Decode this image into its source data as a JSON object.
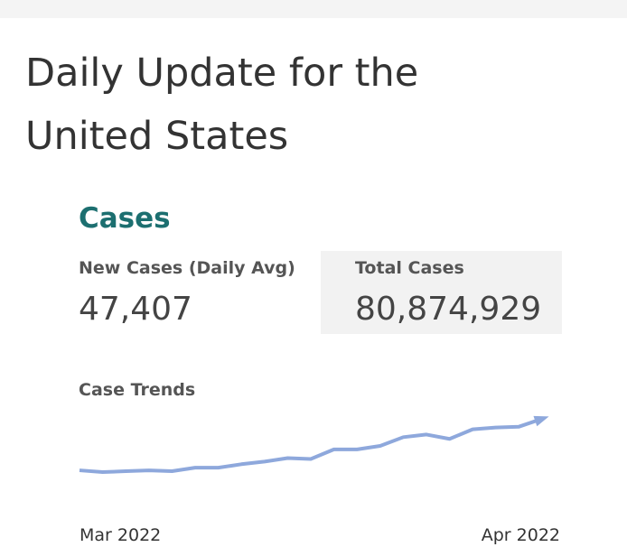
{
  "header": {
    "title_lines": [
      "Daily Update for the",
      "United States"
    ]
  },
  "section": {
    "title": "Cases",
    "stats": [
      {
        "label": "New Cases (Daily Avg)",
        "value": "47,407"
      },
      {
        "label": "Total Cases",
        "value": "80,874,929"
      }
    ],
    "trend": {
      "title": "Case Trends",
      "x_labels": [
        "Mar 2022",
        "Apr 2022"
      ],
      "values": [
        79,
        77,
        78,
        79,
        78,
        82,
        82,
        86,
        89,
        93,
        92,
        103,
        103,
        107,
        117,
        120,
        115,
        126,
        128,
        129,
        138
      ],
      "color": "#8ea8dc"
    }
  }
}
